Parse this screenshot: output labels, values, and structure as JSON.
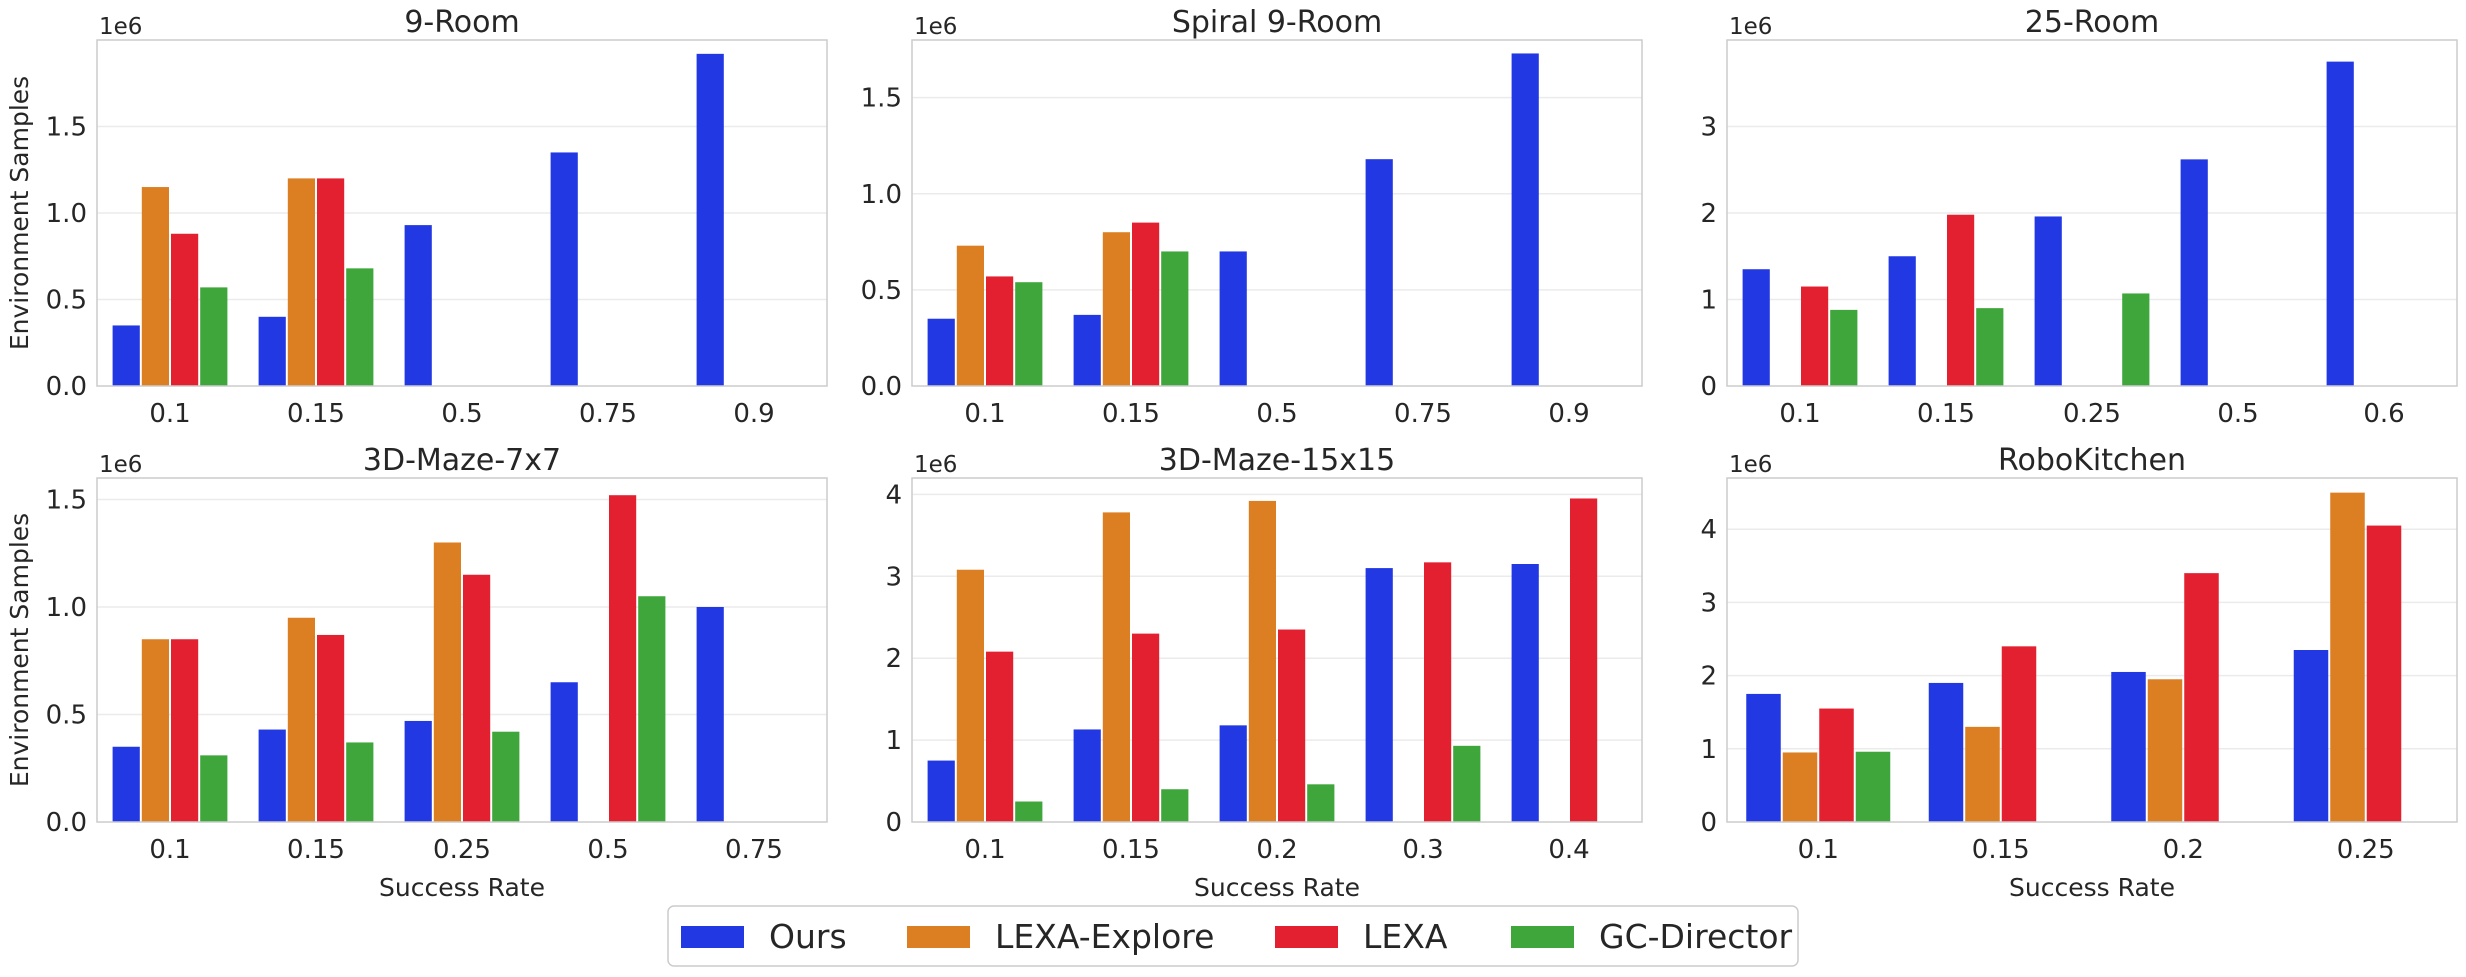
{
  "colors": {
    "Ours": "#2238e3",
    "LEXA-Explore": "#db7f22",
    "LEXA": "#e2202f",
    "GC-Director": "#3ea63a",
    "grid": "#ebebeb",
    "frame": "#cccccc"
  },
  "legend": {
    "position": "bottom-center",
    "entries": [
      "Ours",
      "LEXA-Explore",
      "LEXA",
      "GC-Director"
    ]
  },
  "chart_data": [
    {
      "type": "bar",
      "title": "9-Room",
      "xlabel": "",
      "ylabel": "Environment Samples",
      "exponent": "1e6",
      "ylim": [
        0,
        2.0
      ],
      "yticks": [
        0,
        0.5,
        1.0,
        1.5
      ],
      "ytick_labels": [
        "0.0",
        "0.5",
        "1.0",
        "1.5"
      ],
      "categories": [
        "0.1",
        "0.15",
        "0.5",
        "0.75",
        "0.9"
      ],
      "series": [
        {
          "name": "Ours",
          "values": [
            0.35,
            0.4,
            0.93,
            1.35,
            1.92
          ]
        },
        {
          "name": "LEXA-Explore",
          "values": [
            1.15,
            1.2,
            null,
            null,
            null
          ]
        },
        {
          "name": "LEXA",
          "values": [
            0.88,
            1.2,
            null,
            null,
            null
          ]
        },
        {
          "name": "GC-Director",
          "values": [
            0.57,
            0.68,
            null,
            null,
            null
          ]
        }
      ]
    },
    {
      "type": "bar",
      "title": "Spiral 9-Room",
      "xlabel": "",
      "ylabel": "",
      "exponent": "1e6",
      "ylim": [
        0,
        1.8
      ],
      "yticks": [
        0,
        0.5,
        1.0,
        1.5
      ],
      "ytick_labels": [
        "0.0",
        "0.5",
        "1.0",
        "1.5"
      ],
      "categories": [
        "0.1",
        "0.15",
        "0.5",
        "0.75",
        "0.9"
      ],
      "series": [
        {
          "name": "Ours",
          "values": [
            0.35,
            0.37,
            0.7,
            1.18,
            1.73
          ]
        },
        {
          "name": "LEXA-Explore",
          "values": [
            0.73,
            0.8,
            null,
            null,
            null
          ]
        },
        {
          "name": "LEXA",
          "values": [
            0.57,
            0.85,
            null,
            null,
            null
          ]
        },
        {
          "name": "GC-Director",
          "values": [
            0.54,
            0.7,
            null,
            null,
            null
          ]
        }
      ]
    },
    {
      "type": "bar",
      "title": "25-Room",
      "xlabel": "",
      "ylabel": "",
      "exponent": "1e6",
      "ylim": [
        0,
        4.0
      ],
      "yticks": [
        0,
        1,
        2,
        3
      ],
      "ytick_labels": [
        "0",
        "1",
        "2",
        "3"
      ],
      "categories": [
        "0.1",
        "0.15",
        "0.25",
        "0.5",
        "0.6"
      ],
      "series": [
        {
          "name": "Ours",
          "values": [
            1.35,
            1.5,
            1.96,
            2.62,
            3.75
          ]
        },
        {
          "name": "LEXA-Explore",
          "values": [
            null,
            null,
            null,
            null,
            null
          ]
        },
        {
          "name": "LEXA",
          "values": [
            1.15,
            1.98,
            null,
            null,
            null
          ]
        },
        {
          "name": "GC-Director",
          "values": [
            0.88,
            0.9,
            1.07,
            null,
            null
          ]
        }
      ]
    },
    {
      "type": "bar",
      "title": "3D-Maze-7x7",
      "xlabel": "Success Rate",
      "ylabel": "Environment Samples",
      "exponent": "1e6",
      "ylim": [
        0,
        1.6
      ],
      "yticks": [
        0,
        0.5,
        1.0,
        1.5
      ],
      "ytick_labels": [
        "0.0",
        "0.5",
        "1.0",
        "1.5"
      ],
      "categories": [
        "0.1",
        "0.15",
        "0.25",
        "0.5",
        "0.75"
      ],
      "series": [
        {
          "name": "Ours",
          "values": [
            0.35,
            0.43,
            0.47,
            0.65,
            1.0
          ]
        },
        {
          "name": "LEXA-Explore",
          "values": [
            0.85,
            0.95,
            1.3,
            null,
            null
          ]
        },
        {
          "name": "LEXA",
          "values": [
            0.85,
            0.87,
            1.15,
            1.52,
            null
          ]
        },
        {
          "name": "GC-Director",
          "values": [
            0.31,
            0.37,
            0.42,
            1.05,
            null
          ]
        }
      ]
    },
    {
      "type": "bar",
      "title": "3D-Maze-15x15",
      "xlabel": "Success Rate",
      "ylabel": "",
      "exponent": "1e6",
      "ylim": [
        0,
        4.2
      ],
      "yticks": [
        0,
        1,
        2,
        3,
        4
      ],
      "ytick_labels": [
        "0",
        "1",
        "2",
        "3",
        "4"
      ],
      "categories": [
        "0.1",
        "0.15",
        "0.2",
        "0.3",
        "0.4"
      ],
      "series": [
        {
          "name": "Ours",
          "values": [
            0.75,
            1.13,
            1.18,
            3.1,
            3.15
          ]
        },
        {
          "name": "LEXA-Explore",
          "values": [
            3.08,
            3.78,
            3.92,
            null,
            null
          ]
        },
        {
          "name": "LEXA",
          "values": [
            2.08,
            2.3,
            2.35,
            3.17,
            3.95
          ]
        },
        {
          "name": "GC-Director",
          "values": [
            0.25,
            0.4,
            0.46,
            0.93,
            null
          ]
        }
      ]
    },
    {
      "type": "bar",
      "title": "RoboKitchen",
      "xlabel": "Success Rate",
      "ylabel": "",
      "exponent": "1e6",
      "ylim": [
        0,
        4.7
      ],
      "yticks": [
        0,
        1,
        2,
        3,
        4
      ],
      "ytick_labels": [
        "0",
        "1",
        "2",
        "3",
        "4"
      ],
      "categories": [
        "0.1",
        "0.15",
        "0.2",
        "0.25"
      ],
      "series": [
        {
          "name": "Ours",
          "values": [
            1.75,
            1.9,
            2.05,
            2.35
          ]
        },
        {
          "name": "LEXA-Explore",
          "values": [
            0.95,
            1.3,
            1.95,
            4.5
          ]
        },
        {
          "name": "LEXA",
          "values": [
            1.55,
            2.4,
            3.4,
            4.05
          ]
        },
        {
          "name": "GC-Director",
          "values": [
            0.96,
            null,
            null,
            null
          ]
        }
      ]
    }
  ]
}
